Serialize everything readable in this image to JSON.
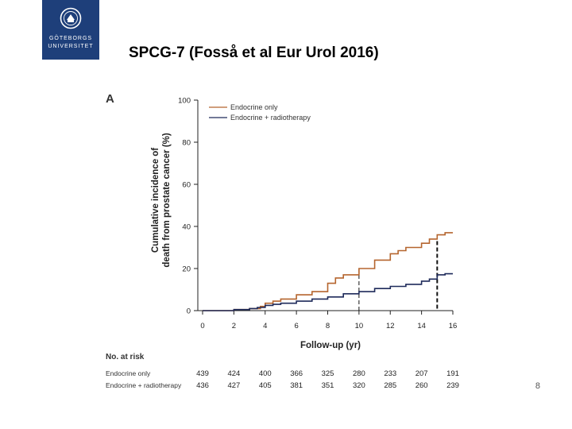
{
  "logo": {
    "line1": "GÖTEBORGS",
    "line2": "UNIVERSITET",
    "colors": {
      "background": "#1e3f7a",
      "text": "#ffffff"
    }
  },
  "slide": {
    "title": "SPCG-7 (Fosså et al Eur Urol 2016)",
    "page_number": "8"
  },
  "chart_data": {
    "type": "line",
    "panel_label": "A",
    "xlabel": "Follow-up (yr)",
    "ylabel_lines": [
      "Cumulative incidence of",
      "death from prostate cancer (%)"
    ],
    "xlim": [
      0,
      16
    ],
    "ylim": [
      0,
      100
    ],
    "x_ticks": [
      0,
      2,
      4,
      6,
      8,
      10,
      12,
      14,
      16
    ],
    "y_ticks": [
      0,
      20,
      40,
      60,
      80,
      100
    ],
    "legend_position": "top-left",
    "series": [
      {
        "name": "Endocrine only",
        "color": "#b5652e",
        "points": [
          [
            0,
            0
          ],
          [
            1,
            0
          ],
          [
            2,
            0.5
          ],
          [
            3,
            1
          ],
          [
            3.7,
            2
          ],
          [
            4,
            3.5
          ],
          [
            4.5,
            4.5
          ],
          [
            5,
            5.5
          ],
          [
            6,
            7.5
          ],
          [
            7,
            9
          ],
          [
            8,
            13
          ],
          [
            8.5,
            15.5
          ],
          [
            9,
            17
          ],
          [
            10,
            20
          ],
          [
            11,
            24
          ],
          [
            12,
            27
          ],
          [
            12.5,
            28.5
          ],
          [
            13,
            30
          ],
          [
            14,
            32
          ],
          [
            14.5,
            34
          ],
          [
            15,
            36
          ],
          [
            15.5,
            37
          ],
          [
            16,
            37
          ]
        ]
      },
      {
        "name": "Endocrine + radiotherapy",
        "color": "#1e2a5a",
        "points": [
          [
            0,
            0
          ],
          [
            1,
            0
          ],
          [
            2,
            0.5
          ],
          [
            3,
            1
          ],
          [
            3.5,
            1.5
          ],
          [
            4,
            2.5
          ],
          [
            4.5,
            3
          ],
          [
            5,
            3.5
          ],
          [
            6,
            4.5
          ],
          [
            7,
            5.5
          ],
          [
            8,
            6.5
          ],
          [
            9,
            8
          ],
          [
            10,
            9
          ],
          [
            11,
            10.5
          ],
          [
            12,
            11.5
          ],
          [
            13,
            12.5
          ],
          [
            14,
            14
          ],
          [
            14.5,
            15
          ],
          [
            15,
            17
          ],
          [
            15.5,
            17.5
          ],
          [
            16,
            17.5
          ]
        ]
      }
    ],
    "reference_lines": [
      {
        "x": 10,
        "y": 20
      },
      {
        "x": 15,
        "y": 33
      }
    ],
    "risk_table": {
      "title": "No. at risk",
      "rows": [
        {
          "name": "Endocrine only",
          "values": [
            "439",
            "424",
            "400",
            "366",
            "325",
            "280",
            "233",
            "207",
            "191"
          ]
        },
        {
          "name": "Endocrine + radiotherapy",
          "values": [
            "436",
            "427",
            "405",
            "381",
            "351",
            "320",
            "285",
            "260",
            "239"
          ]
        }
      ]
    }
  }
}
